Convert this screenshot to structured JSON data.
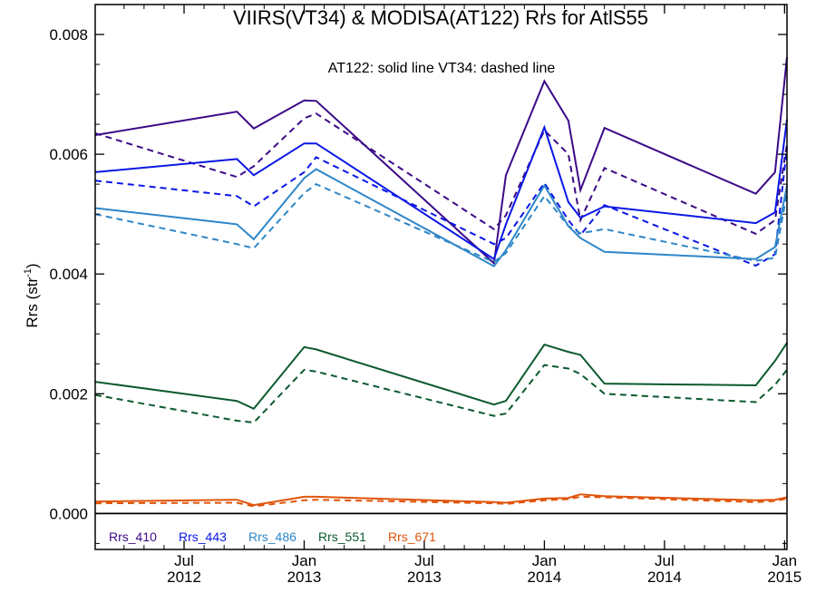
{
  "chart_data": {
    "type": "line",
    "title": "VIIRS(VT34) & MODISA(AT122)  Rrs for AtlS55",
    "annotation": "AT122: solid line   VT34: dashed line",
    "ylabel_main": "Rrs (str",
    "ylabel_sup": "-1",
    "ylabel_close": ")",
    "ylim": [
      -0.0006,
      0.0085
    ],
    "xlim": [
      2012.13,
      2015.01
    ],
    "yticks": [
      {
        "value": 0.0,
        "label": "0.000"
      },
      {
        "value": 0.002,
        "label": "0.002"
      },
      {
        "value": 0.004,
        "label": "0.004"
      },
      {
        "value": 0.006,
        "label": "0.006"
      },
      {
        "value": 0.008,
        "label": "0.008"
      }
    ],
    "xticks": [
      {
        "value": 2012.5,
        "line1": "Jul",
        "line2": "2012"
      },
      {
        "value": 2013.0,
        "line1": "Jan",
        "line2": "2013"
      },
      {
        "value": 2013.5,
        "line1": "Jul",
        "line2": "2013"
      },
      {
        "value": 2014.0,
        "line1": "Jan",
        "line2": "2014"
      },
      {
        "value": 2014.5,
        "line1": "Jul",
        "line2": "2014"
      },
      {
        "value": 2015.0,
        "line1": "Jan",
        "line2": "2015"
      }
    ],
    "zero_line": 0.0,
    "x": [
      2012.13,
      2012.72,
      2012.79,
      2013.0,
      2013.05,
      2013.79,
      2013.84,
      2014.0,
      2014.1,
      2014.15,
      2014.25,
      2014.88,
      2014.96,
      2015.01
    ],
    "series": [
      {
        "name": "Rrs_410",
        "color": "#3b0a87",
        "at122": [
          0.00632,
          0.00671,
          0.00643,
          0.0069,
          0.00689,
          0.00418,
          0.00565,
          0.00722,
          0.00656,
          0.0054,
          0.00644,
          0.00534,
          0.0057,
          0.00762
        ],
        "vt34": [
          0.00635,
          0.00562,
          0.0058,
          0.0066,
          0.00668,
          0.00475,
          0.00498,
          0.0064,
          0.006,
          0.0049,
          0.00577,
          0.00467,
          0.0049,
          0.00617
        ]
      },
      {
        "name": "Rrs_443",
        "color": "#0a17e6",
        "at122": [
          0.0057,
          0.00592,
          0.00565,
          0.00618,
          0.00618,
          0.00425,
          0.00483,
          0.00645,
          0.0052,
          0.00494,
          0.00513,
          0.00485,
          0.00503,
          0.00658
        ],
        "vt34": [
          0.00556,
          0.0053,
          0.00513,
          0.0057,
          0.00595,
          0.0045,
          0.0046,
          0.00552,
          0.0049,
          0.00465,
          0.00515,
          0.00414,
          0.00433,
          0.00612
        ]
      },
      {
        "name": "Rrs_486",
        "color": "#2e86c8",
        "at122": [
          0.0051,
          0.00483,
          0.00458,
          0.0056,
          0.00575,
          0.00413,
          0.0044,
          0.00548,
          0.0048,
          0.0046,
          0.00437,
          0.00425,
          0.00445,
          0.00548
        ],
        "vt34": [
          0.005,
          0.0045,
          0.00443,
          0.00535,
          0.0055,
          0.0042,
          0.00435,
          0.0053,
          0.0048,
          0.00468,
          0.00475,
          0.00422,
          0.00427,
          0.00535
        ]
      },
      {
        "name": "Rrs_551",
        "color": "#0b5a2e",
        "at122": [
          0.0022,
          0.00188,
          0.00175,
          0.00278,
          0.00274,
          0.00182,
          0.00188,
          0.00282,
          0.0027,
          0.00265,
          0.00217,
          0.00214,
          0.00255,
          0.00285
        ],
        "vt34": [
          0.00198,
          0.00155,
          0.00152,
          0.0024,
          0.00237,
          0.00163,
          0.00167,
          0.00248,
          0.00242,
          0.00233,
          0.002,
          0.00186,
          0.00215,
          0.0024
        ]
      },
      {
        "name": "Rrs_671",
        "color": "#e0540a",
        "at122": [
          0.0002,
          0.00023,
          0.00014,
          0.00028,
          0.00028,
          0.00019,
          0.00018,
          0.00025,
          0.00026,
          0.00032,
          0.00029,
          0.00022,
          0.00023,
          0.00027
        ],
        "vt34": [
          0.00017,
          0.00018,
          0.00012,
          0.00022,
          0.00023,
          0.00017,
          0.00016,
          0.00022,
          0.00024,
          0.00028,
          0.00027,
          0.00019,
          0.00021,
          0.00025
        ]
      }
    ],
    "legend_placement": "bottom-left",
    "grid": false
  }
}
